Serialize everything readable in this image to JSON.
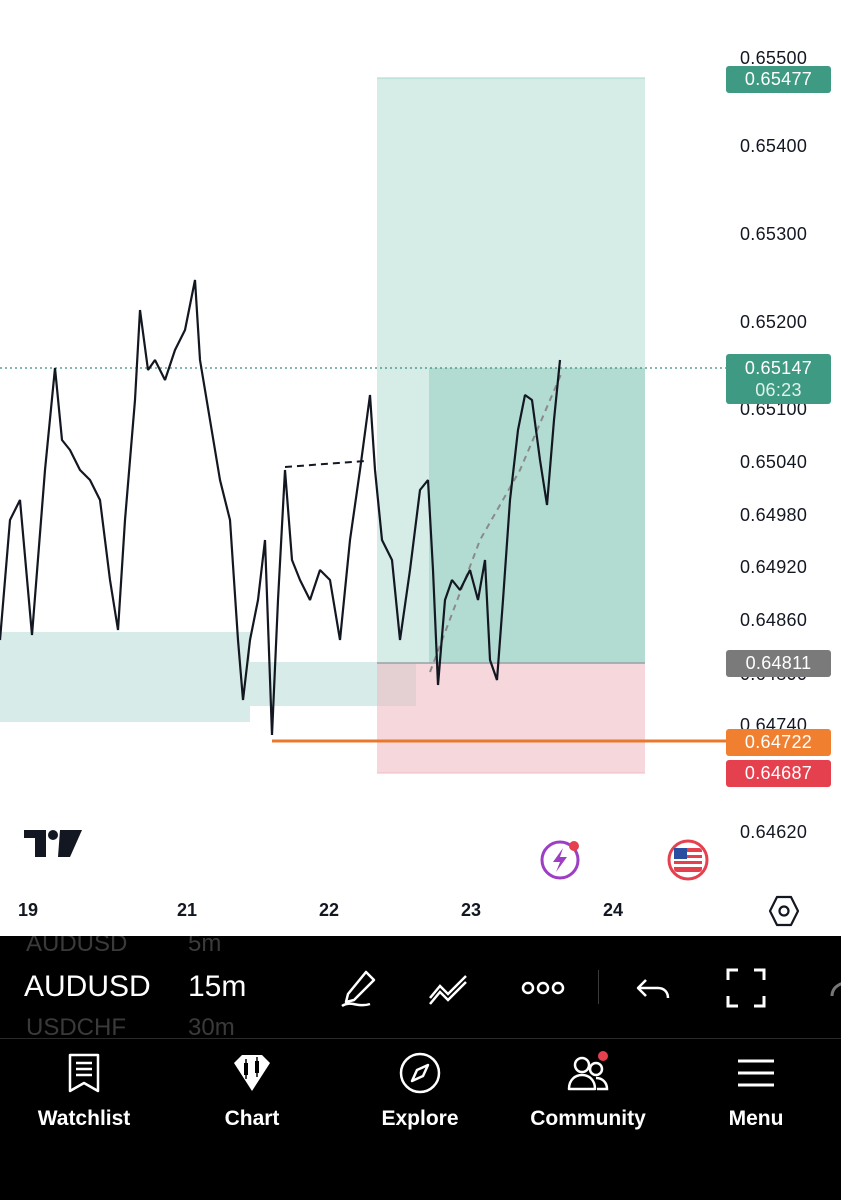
{
  "chart": {
    "price_axis_labels": [
      "0.65500",
      "0.65400",
      "0.65300",
      "0.65200",
      "0.65100",
      "0.65040",
      "0.64980",
      "0.64920",
      "0.64860",
      "0.64800",
      "0.64740",
      "0.64620"
    ],
    "date_labels": [
      "19",
      "21",
      "22",
      "23",
      "24"
    ],
    "badges": {
      "take_profit": {
        "value": "0.65477",
        "color": "#3e9a82"
      },
      "current": {
        "value": "0.65147",
        "countdown": "06:23",
        "color": "#3e9a82"
      },
      "entry": {
        "value": "0.64811",
        "color": "#7a7a7a"
      },
      "level": {
        "value": "0.64722",
        "color": "#f0802f"
      },
      "stop_loss": {
        "value": "0.64687",
        "color": "#e5404d"
      }
    },
    "logo": "TradingView-logo",
    "chart_settings_icon": "hexagon-settings-icon"
  },
  "chart_data": {
    "type": "line",
    "instrument": "AUDUSD",
    "timeframe": "15m",
    "x_ticks": [
      "19",
      "21",
      "22",
      "23",
      "24"
    ],
    "y_range": [
      0.6462,
      0.6555
    ],
    "series": [
      {
        "x": [
          19.0,
          19.15,
          19.35,
          19.55,
          19.8,
          20.1,
          20.3,
          20.6,
          20.85,
          21.0,
          21.2,
          21.35,
          21.5,
          21.65,
          21.8,
          21.95,
          22.1,
          22.25,
          22.35,
          22.5,
          22.7,
          22.85,
          23.0,
          23.2,
          23.35,
          23.5,
          23.6,
          23.65
        ],
        "values": [
          0.6488,
          0.6505,
          0.6488,
          0.651,
          0.6493,
          0.6484,
          0.6514,
          0.6512,
          0.651,
          0.6516,
          0.6503,
          0.6485,
          0.648,
          0.6492,
          0.6488,
          0.649,
          0.6492,
          0.6506,
          0.6496,
          0.6488,
          0.6492,
          0.6485,
          0.649,
          0.6486,
          0.65,
          0.651,
          0.6505,
          0.6514
        ]
      }
    ],
    "horizontal_levels": {
      "take_profit": 0.65477,
      "current_price": 0.65147,
      "entry": 0.64811,
      "level": 0.64722,
      "stop_loss": 0.64687
    }
  },
  "toolbar": {
    "symbols": [
      "AUDUSD",
      "AUDUSD",
      "USDCHF"
    ],
    "intervals": [
      "5m",
      "15m",
      "30m"
    ],
    "icons": [
      "draw-pen-icon",
      "trendline-tool-icon",
      "more-options-icon",
      "undo-icon",
      "fullscreen-icon"
    ]
  },
  "nav": {
    "items": [
      {
        "label": "Watchlist",
        "icon": "watchlist-icon"
      },
      {
        "label": "Chart",
        "icon": "chart-icon"
      },
      {
        "label": "Explore",
        "icon": "compass-icon"
      },
      {
        "label": "Community",
        "icon": "community-icon"
      },
      {
        "label": "Menu",
        "icon": "hamburger-menu-icon"
      }
    ]
  }
}
